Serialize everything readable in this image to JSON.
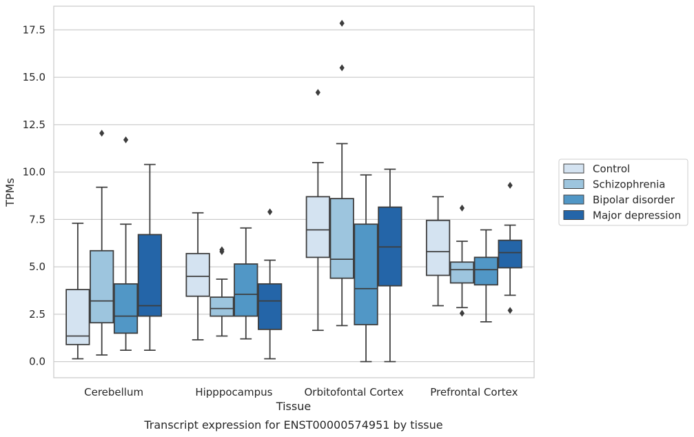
{
  "chart_data": {
    "type": "box",
    "title": "",
    "caption": "Transcript expression for ENST00000574951 by tissue",
    "xlabel": "Tissue",
    "ylabel": "TPMs",
    "ylim": [
      -0.85,
      18.75
    ],
    "yticks": [
      "0.0",
      "2.5",
      "5.0",
      "7.5",
      "10.0",
      "12.5",
      "15.0",
      "17.5"
    ],
    "ytick_values": [
      0,
      2.5,
      5,
      7.5,
      10,
      12.5,
      15,
      17.5
    ],
    "grid": "horizontal",
    "legend_position": "right",
    "categories": [
      "Cerebellum",
      "Hipppocampus",
      "Orbitofontal Cortex",
      "Prefrontal Cortex"
    ],
    "series": [
      {
        "name": "Control",
        "color": "#d4e3f1",
        "boxes": [
          {
            "whislo": 0.15,
            "q1": 0.9,
            "med": 1.35,
            "q3": 3.8,
            "whishi": 7.3,
            "fliers": []
          },
          {
            "whislo": 1.15,
            "q1": 3.45,
            "med": 4.5,
            "q3": 5.7,
            "whishi": 7.85,
            "fliers": []
          },
          {
            "whislo": 1.65,
            "q1": 5.5,
            "med": 6.95,
            "q3": 8.7,
            "whishi": 10.5,
            "fliers": [
              14.2
            ]
          },
          {
            "whislo": 2.95,
            "q1": 4.55,
            "med": 5.8,
            "q3": 7.45,
            "whishi": 8.7,
            "fliers": []
          }
        ]
      },
      {
        "name": "Schizophrenia",
        "color": "#9dc5de",
        "boxes": [
          {
            "whislo": 0.35,
            "q1": 2.05,
            "med": 3.2,
            "q3": 5.85,
            "whishi": 9.2,
            "fliers": [
              12.05
            ]
          },
          {
            "whislo": 1.35,
            "q1": 2.4,
            "med": 2.8,
            "q3": 3.4,
            "whishi": 4.35,
            "fliers": [
              5.8,
              5.9
            ]
          },
          {
            "whislo": 1.9,
            "q1": 4.4,
            "med": 5.4,
            "q3": 8.6,
            "whishi": 11.5,
            "fliers": [
              15.5,
              17.85
            ]
          },
          {
            "whislo": 2.85,
            "q1": 4.15,
            "med": 4.85,
            "q3": 5.25,
            "whishi": 6.35,
            "fliers": [
              2.55,
              8.1
            ]
          }
        ]
      },
      {
        "name": "Bipolar disorder",
        "color": "#5197c6",
        "boxes": [
          {
            "whislo": 0.6,
            "q1": 1.5,
            "med": 2.4,
            "q3": 4.1,
            "whishi": 7.25,
            "fliers": [
              11.7
            ]
          },
          {
            "whislo": 1.2,
            "q1": 2.4,
            "med": 3.55,
            "q3": 5.15,
            "whishi": 7.05,
            "fliers": []
          },
          {
            "whislo": 0.0,
            "q1": 1.95,
            "med": 3.85,
            "q3": 7.25,
            "whishi": 9.85,
            "fliers": []
          },
          {
            "whislo": 2.1,
            "q1": 4.05,
            "med": 4.85,
            "q3": 5.5,
            "whishi": 6.95,
            "fliers": []
          }
        ]
      },
      {
        "name": "Major depression",
        "color": "#2465a8",
        "boxes": [
          {
            "whislo": 0.6,
            "q1": 2.4,
            "med": 2.95,
            "q3": 6.7,
            "whishi": 10.4,
            "fliers": []
          },
          {
            "whislo": 0.15,
            "q1": 1.7,
            "med": 3.2,
            "q3": 4.1,
            "whishi": 5.35,
            "fliers": [
              7.9
            ]
          },
          {
            "whislo": 0.0,
            "q1": 4.0,
            "med": 6.05,
            "q3": 8.15,
            "whishi": 10.15,
            "fliers": []
          },
          {
            "whislo": 3.5,
            "q1": 4.95,
            "med": 5.75,
            "q3": 6.4,
            "whishi": 7.2,
            "fliers": [
              2.7,
              9.3
            ]
          }
        ]
      }
    ]
  }
}
